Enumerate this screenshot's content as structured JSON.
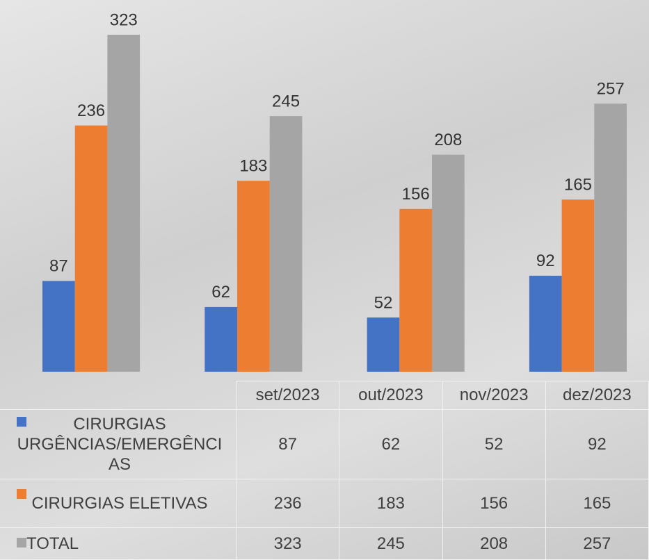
{
  "chart_data": {
    "type": "bar",
    "categories": [
      "set/2023",
      "out/2023",
      "nov/2023",
      "dez/2023"
    ],
    "series": [
      {
        "name": "CIRURGIAS URGÊNCIAS/EMERGÊNCIAS",
        "color": "#4472c4",
        "values": [
          87,
          62,
          52,
          92
        ]
      },
      {
        "name": "CIRURGIAS ELETIVAS",
        "color": "#ed7d31",
        "values": [
          236,
          183,
          156,
          165
        ]
      },
      {
        "name": "TOTAL",
        "color": "#a5a5a5",
        "values": [
          323,
          245,
          208,
          257
        ]
      }
    ],
    "data_table": true
  }
}
